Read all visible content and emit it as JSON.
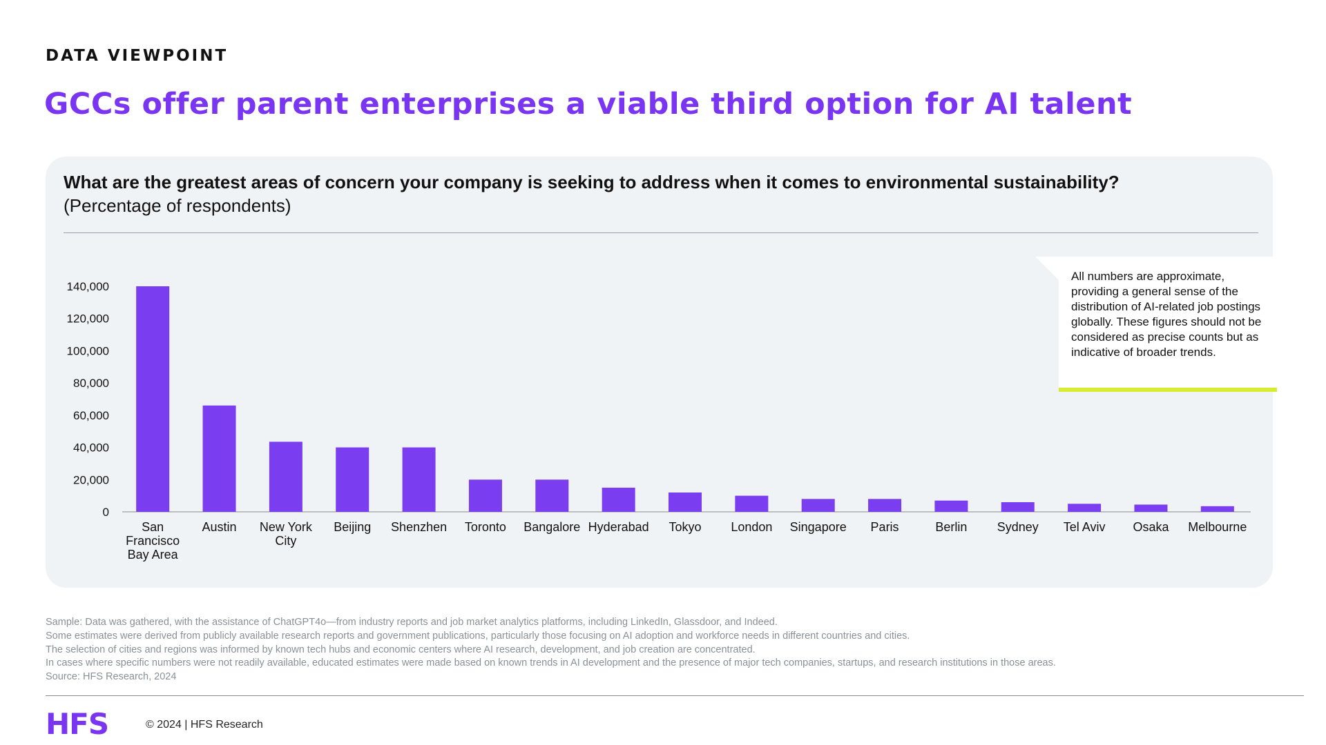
{
  "header": {
    "eyebrow": "DATA VIEWPOINT",
    "headline": "GCCs offer parent enterprises a viable third option for AI talent"
  },
  "panel": {
    "question": "What are the greatest areas of concern your company is seeking to address when it comes to environmental sustainability?",
    "subtitle": "(Percentage of respondents)"
  },
  "note": {
    "text": "All numbers are approximate, providing a general sense of the distribution of AI-related job postings globally. These figures should not be considered as precise counts but as indicative of broader trends."
  },
  "footnotes": [
    "Sample: Data was gathered, with the assistance of ChatGPT4o—from industry reports and job market analytics platforms, including LinkedIn, Glassdoor, and Indeed.",
    "Some estimates were derived from publicly available research reports and government publications, particularly those focusing on AI adoption and workforce needs in different countries and cities.",
    "The selection of cities and regions was informed by known tech hubs and economic centers where AI research, development, and job creation are concentrated.",
    "In cases where specific numbers were not readily available, educated estimates were made based on known trends in AI development and the presence of major tech companies, startups, and research institutions in those areas.",
    "Source: HFS Research, 2024"
  ],
  "footer": {
    "logo": "HFS",
    "copyright": "© 2024 | HFS Research"
  },
  "colors": {
    "accent": "#7a35f2",
    "bar": "#7a3df0",
    "note_bar": "#d6ec2c",
    "panel_bg": "#f0f3f6"
  },
  "chart_data": {
    "type": "bar",
    "categories": [
      "San Francisco Bay Area",
      "Austin",
      "New York City",
      "Beijing",
      "Shenzhen",
      "Toronto",
      "Bangalore",
      "Hyderabad",
      "Tokyo",
      "London",
      "Singapore",
      "Paris",
      "Berlin",
      "Sydney",
      "Tel Aviv",
      "Osaka",
      "Melbourne"
    ],
    "category_lines": [
      [
        "San",
        "Francisco",
        "Bay Area"
      ],
      [
        "Austin"
      ],
      [
        "New York",
        "City"
      ],
      [
        "Beijing"
      ],
      [
        "Shenzhen"
      ],
      [
        "Toronto"
      ],
      [
        "Bangalore"
      ],
      [
        "Hyderabad"
      ],
      [
        "Tokyo"
      ],
      [
        "London"
      ],
      [
        "Singapore"
      ],
      [
        "Paris"
      ],
      [
        "Berlin"
      ],
      [
        "Sydney"
      ],
      [
        "Tel Aviv"
      ],
      [
        "Osaka"
      ],
      [
        "Melbourne"
      ]
    ],
    "values": [
      140000,
      66000,
      43500,
      40000,
      40000,
      20000,
      20000,
      15000,
      12000,
      10000,
      8000,
      8000,
      7000,
      6000,
      5000,
      4500,
      3500
    ],
    "yticks": [
      "0",
      "20,000",
      "40,000",
      "60,000",
      "80,000",
      "100,000",
      "120,000",
      "140,000"
    ],
    "ytick_values": [
      0,
      20000,
      40000,
      60000,
      80000,
      100000,
      120000,
      140000
    ],
    "ylim": [
      0,
      140000
    ],
    "grid": false,
    "legend": "none"
  }
}
